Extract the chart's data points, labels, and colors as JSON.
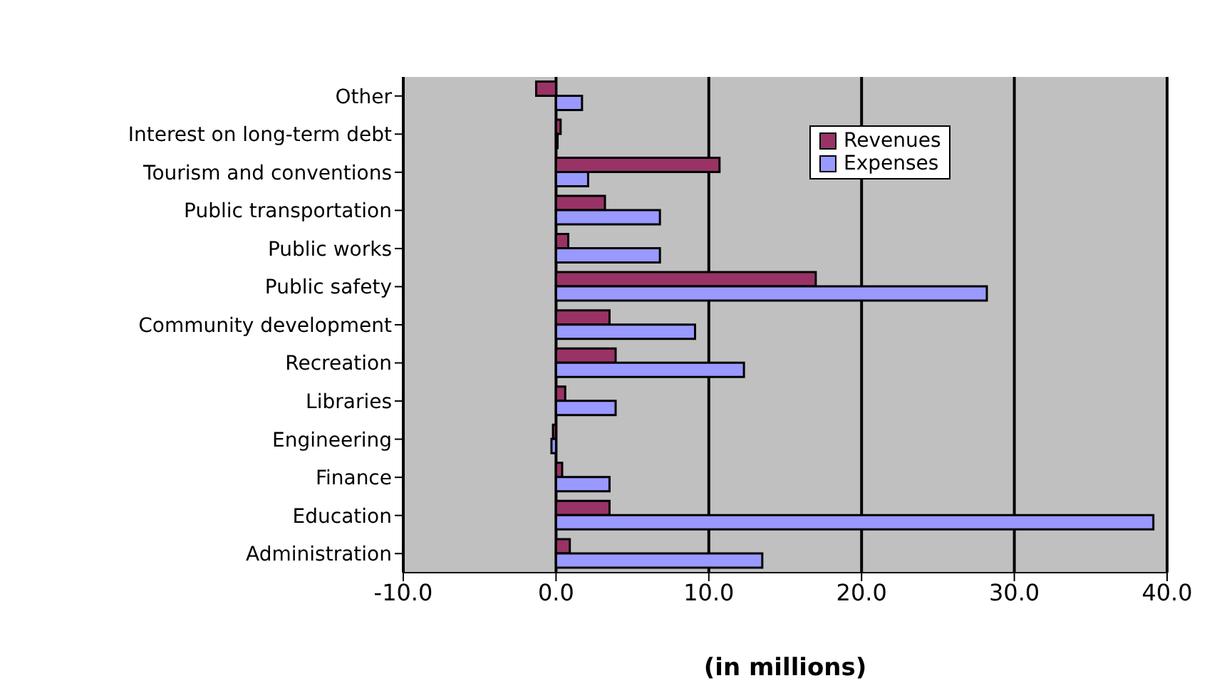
{
  "chart_data": {
    "type": "bar",
    "orientation": "horizontal",
    "xlabel": "(in millions)",
    "categories": [
      "Other",
      "Interest on long-term debt",
      "Tourism and conventions",
      "Public transportation",
      "Public works",
      "Public safety",
      "Community development",
      "Recreation",
      "Libraries",
      "Engineering",
      "Finance",
      "Education",
      "Administration"
    ],
    "series": [
      {
        "name": "Revenues",
        "color": "#993366",
        "values": [
          -1.3,
          0.3,
          10.7,
          3.2,
          0.8,
          17.0,
          3.5,
          3.9,
          0.6,
          -0.2,
          0.4,
          3.5,
          0.9
        ]
      },
      {
        "name": "Expenses",
        "color": "#9999ff",
        "values": [
          1.7,
          0.1,
          2.1,
          6.8,
          6.8,
          28.2,
          9.1,
          12.3,
          3.9,
          -0.3,
          3.5,
          39.1,
          13.5
        ]
      }
    ],
    "xlim": [
      -10,
      40
    ],
    "xticks": [
      {
        "value": -10,
        "label": "-10.0"
      },
      {
        "value": 0,
        "label": "0.0"
      },
      {
        "value": 10,
        "label": "10.0"
      },
      {
        "value": 20,
        "label": "20.0"
      },
      {
        "value": 30,
        "label": "30.0"
      },
      {
        "value": 40,
        "label": "40.0"
      }
    ],
    "grid": "x",
    "legend": "top right"
  }
}
